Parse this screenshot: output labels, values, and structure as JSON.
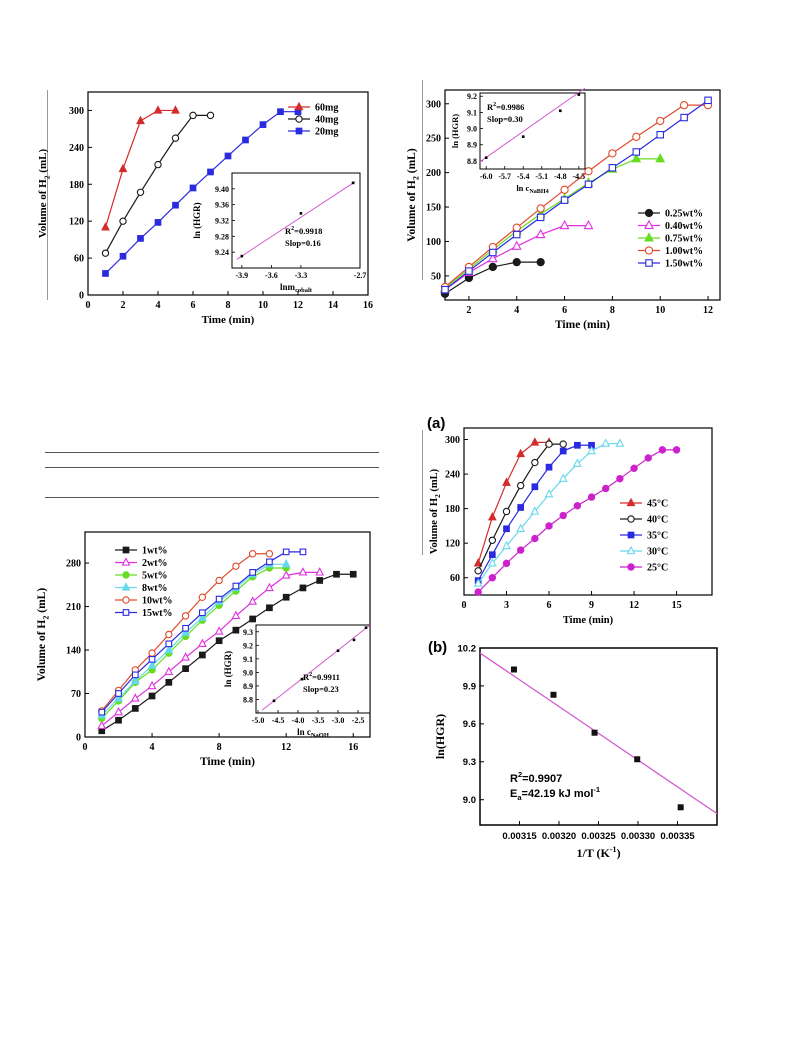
{
  "colors": {
    "red": "#d42b2b",
    "black": "#1a1a1a",
    "blue": "#2a2ae0",
    "magenta": "#e030e0",
    "green": "#66dd22",
    "orange": "#e04a2a",
    "cyan": "#66d8ee",
    "purple": "#cc22cc",
    "fit": "#d25ad2"
  },
  "chart_data": [
    {
      "type": "line",
      "xlabel": "Time (min)",
      "ylabel": "Volume of H2 (mL)",
      "xlim": [
        0,
        16
      ],
      "ylim": [
        0,
        330
      ],
      "x_ticks": [
        "0",
        "2",
        "4",
        "6",
        "8",
        "10",
        "12",
        "14",
        "16"
      ],
      "y_ticks": [
        "0",
        "60",
        "120",
        "180",
        "240",
        "300"
      ],
      "legend_position": "top-right",
      "series": [
        {
          "name": "60mg",
          "color": "#d42b2b",
          "marker": "triangle-filled",
          "x": [
            1,
            2,
            3,
            4,
            5
          ],
          "y": [
            110,
            205,
            283,
            300,
            300
          ]
        },
        {
          "name": "40mg",
          "color": "#1a1a1a",
          "marker": "circle-open",
          "x": [
            1,
            2,
            3,
            4,
            5,
            6,
            7
          ],
          "y": [
            68,
            120,
            167,
            212,
            255,
            292,
            292
          ]
        },
        {
          "name": "20mg",
          "color": "#2a2ae0",
          "marker": "square-filled",
          "x": [
            1,
            2,
            3,
            4,
            5,
            6,
            7,
            8,
            9,
            10,
            11,
            12
          ],
          "y": [
            35,
            63,
            92,
            118,
            146,
            174,
            200,
            226,
            252,
            277,
            298,
            298
          ]
        }
      ],
      "inset": {
        "ylabel": "ln (HGR)",
        "xlabel": "lnm",
        "xlabel_sub": "cobalt",
        "xlim": [
          -4.0,
          -2.7
        ],
        "ylim": [
          9.2,
          9.44
        ],
        "x_ticks": [
          "-3.9",
          "-3.6",
          "-3.3",
          "-2.7"
        ],
        "y_ticks": [
          "9.24",
          "9.28",
          "9.32",
          "9.36",
          "9.40"
        ],
        "points": {
          "x": [
            -3.9,
            -3.3,
            -2.77
          ],
          "y": [
            9.23,
            9.338,
            9.415
          ]
        },
        "fit": {
          "x": [
            -3.95,
            -2.75
          ],
          "y": [
            9.222,
            9.418
          ]
        },
        "r2_label": "R",
        "r2_value": "=0.9918",
        "slope_label": "Slop=0.16"
      }
    },
    {
      "type": "line",
      "xlabel": "Time (min)",
      "ylabel": "Volume of H2 (mL)",
      "xlim": [
        1,
        12.5
      ],
      "ylim": [
        15,
        320
      ],
      "x_ticks": [
        "2",
        "4",
        "6",
        "8",
        "10",
        "12"
      ],
      "y_ticks": [
        "50",
        "100",
        "150",
        "200",
        "250",
        "300"
      ],
      "legend_position": "bottom-right",
      "series": [
        {
          "name": "0.25wt%",
          "color": "#1a1a1a",
          "marker": "circle-filled",
          "x": [
            1,
            2,
            3,
            4,
            5
          ],
          "y": [
            24,
            47,
            63,
            70,
            70
          ]
        },
        {
          "name": "0.40wt%",
          "color": "#e030e0",
          "marker": "triangle-open",
          "x": [
            1,
            2,
            3,
            4,
            5,
            6,
            7
          ],
          "y": [
            30,
            55,
            75,
            93,
            110,
            123,
            123
          ]
        },
        {
          "name": "0.75wt%",
          "color": "#66dd22",
          "marker": "triangle-filled",
          "x": [
            1,
            2,
            3,
            4,
            5,
            6,
            7,
            8,
            9,
            10
          ],
          "y": [
            32,
            60,
            88,
            115,
            140,
            162,
            185,
            205,
            220,
            220
          ]
        },
        {
          "name": "1.00wt%",
          "color": "#e04a2a",
          "marker": "circle-open",
          "x": [
            1,
            2,
            3,
            4,
            5,
            6,
            7,
            8,
            9,
            10,
            11,
            12
          ],
          "y": [
            34,
            63,
            92,
            120,
            148,
            175,
            202,
            228,
            252,
            275,
            298,
            298
          ]
        },
        {
          "name": "1.50wt%",
          "color": "#2a2ae0",
          "marker": "square-open",
          "x": [
            1,
            2,
            3,
            4,
            5,
            6,
            7,
            8,
            9,
            10,
            11,
            12
          ],
          "y": [
            30,
            57,
            84,
            110,
            135,
            160,
            183,
            207,
            230,
            255,
            280,
            305
          ]
        }
      ],
      "inset": {
        "ylabel": "ln (HGR)",
        "xlabel": "ln c",
        "xlabel_sub": "NaBH4",
        "xlim": [
          -6.1,
          -4.4
        ],
        "ylim": [
          8.75,
          9.22
        ],
        "x_ticks": [
          "-6.0",
          "-5.7",
          "-5.4",
          "-5.1",
          "-4.8",
          "-4.5"
        ],
        "y_ticks": [
          "8.8",
          "8.9",
          "9.0",
          "9.1",
          "9.2"
        ],
        "points": {
          "x": [
            -6.0,
            -5.4,
            -4.8,
            -4.5
          ],
          "y": [
            8.82,
            8.95,
            9.11,
            9.21
          ]
        },
        "fit": {
          "x": [
            -6.1,
            -4.4
          ],
          "y": [
            8.795,
            9.25
          ]
        },
        "r2_label": "R",
        "r2_value": "=0.9986",
        "slope_label": "Slop=0.30"
      }
    },
    {
      "type": "line",
      "xlabel": "Time (min)",
      "ylabel": "Volume of H2 (mL)",
      "xlim": [
        0,
        17
      ],
      "ylim": [
        0,
        330
      ],
      "x_ticks": [
        "0",
        "4",
        "8",
        "12",
        "16"
      ],
      "y_ticks": [
        "0",
        "70",
        "140",
        "210",
        "280"
      ],
      "legend_position": "top-left",
      "series": [
        {
          "name": "1wt%",
          "color": "#1a1a1a",
          "marker": "square-filled",
          "x": [
            1,
            2,
            3,
            4,
            5,
            6,
            7,
            8,
            9,
            10,
            11,
            12,
            13,
            14,
            15,
            16
          ],
          "y": [
            10,
            27,
            46,
            66,
            88,
            110,
            132,
            155,
            172,
            190,
            208,
            225,
            240,
            252,
            262,
            262
          ]
        },
        {
          "name": "2wt%",
          "color": "#e030e0",
          "marker": "triangle-open",
          "x": [
            1,
            2,
            3,
            4,
            5,
            6,
            7,
            8,
            9,
            10,
            11,
            12,
            13,
            14
          ],
          "y": [
            18,
            40,
            62,
            82,
            105,
            128,
            150,
            170,
            195,
            218,
            240,
            260,
            265,
            265
          ]
        },
        {
          "name": "5wt%",
          "color": "#66dd22",
          "marker": "circle-filled",
          "x": [
            1,
            2,
            3,
            4,
            5,
            6,
            7,
            8,
            9,
            10,
            11,
            12
          ],
          "y": [
            30,
            58,
            88,
            108,
            135,
            162,
            188,
            212,
            235,
            258,
            272,
            272
          ]
        },
        {
          "name": "8wt%",
          "color": "#66d8ee",
          "marker": "triangle-filled",
          "x": [
            1,
            2,
            3,
            4,
            5,
            6,
            7,
            8,
            9,
            10,
            11,
            12
          ],
          "y": [
            35,
            62,
            90,
            115,
            140,
            168,
            192,
            218,
            240,
            262,
            278,
            278
          ]
        },
        {
          "name": "10wt%",
          "color": "#e04a2a",
          "marker": "circle-open",
          "x": [
            1,
            2,
            3,
            4,
            5,
            6,
            7,
            8,
            9,
            10,
            11
          ],
          "y": [
            42,
            75,
            108,
            135,
            165,
            195,
            225,
            252,
            275,
            295,
            295
          ]
        },
        {
          "name": "15wt%",
          "color": "#2a2ae0",
          "marker": "square-open",
          "x": [
            1,
            2,
            3,
            4,
            5,
            6,
            7,
            8,
            9,
            10,
            11,
            12,
            13
          ],
          "y": [
            40,
            70,
            100,
            125,
            150,
            175,
            200,
            222,
            243,
            265,
            282,
            298,
            298
          ]
        }
      ],
      "inset": {
        "ylabel": "ln (HGR)",
        "xlabel": "ln c",
        "xlabel_sub": "NaOH",
        "xlim": [
          -5.05,
          -2.2
        ],
        "ylim": [
          8.7,
          9.35
        ],
        "x_ticks": [
          "-5.0",
          "-4.5",
          "-4.0",
          "-3.5",
          "-3.0",
          "-2.5"
        ],
        "y_ticks": [
          "8.8",
          "8.9",
          "9.0",
          "9.1",
          "9.2",
          "9.3"
        ],
        "points": {
          "x": [
            -4.6,
            -3.9,
            -3.0,
            -2.6,
            -2.3
          ],
          "y": [
            8.79,
            8.95,
            9.16,
            9.24,
            9.33
          ]
        },
        "fit": {
          "x": [
            -4.9,
            -2.2
          ],
          "y": [
            8.72,
            9.35
          ]
        },
        "r2_label": "R",
        "r2_value": "=0.9911",
        "slope_label": "Slop=0.23"
      }
    },
    {
      "type": "line",
      "panel_label": "(a)",
      "xlabel": "Time (min)",
      "ylabel": "Volume of H2 (mL)",
      "xlim": [
        0,
        17.5
      ],
      "ylim": [
        30,
        320
      ],
      "x_ticks": [
        "0",
        "3",
        "6",
        "9",
        "12",
        "15"
      ],
      "y_ticks": [
        "60",
        "120",
        "180",
        "240",
        "300"
      ],
      "legend_position": "right",
      "series": [
        {
          "name": "45°C",
          "color": "#d42b2b",
          "marker": "triangle-filled",
          "x": [
            1,
            2,
            3,
            4,
            5,
            6
          ],
          "y": [
            85,
            165,
            225,
            275,
            295,
            295
          ]
        },
        {
          "name": "40°C",
          "color": "#1a1a1a",
          "marker": "circle-open",
          "x": [
            1,
            2,
            3,
            4,
            5,
            6,
            7
          ],
          "y": [
            72,
            125,
            175,
            220,
            260,
            292,
            292
          ]
        },
        {
          "name": "35°C",
          "color": "#2a2ae0",
          "marker": "square-filled",
          "x": [
            1,
            2,
            3,
            4,
            5,
            6,
            7,
            8,
            9
          ],
          "y": [
            55,
            100,
            145,
            182,
            218,
            252,
            280,
            290,
            290
          ]
        },
        {
          "name": "30°C",
          "color": "#66d8ee",
          "marker": "triangle-open",
          "x": [
            1,
            2,
            3,
            4,
            5,
            6,
            7,
            8,
            9,
            10,
            11
          ],
          "y": [
            50,
            85,
            115,
            145,
            175,
            205,
            232,
            258,
            280,
            293,
            293
          ]
        },
        {
          "name": "25°C",
          "color": "#cc22cc",
          "marker": "circle-filled",
          "x": [
            1,
            2,
            3,
            4,
            5,
            6,
            7,
            8,
            9,
            10,
            11,
            12,
            13,
            14,
            15
          ],
          "y": [
            35,
            60,
            85,
            108,
            128,
            150,
            168,
            185,
            200,
            215,
            232,
            250,
            268,
            282,
            282
          ]
        }
      ]
    },
    {
      "type": "scatter",
      "panel_label": "(b)",
      "xlabel": "1/T (K",
      "xlabel_sup": "-1",
      "ylabel": "ln(HGR)",
      "xlim": [
        0.0031,
        0.0034
      ],
      "ylim": [
        8.8,
        10.2
      ],
      "x_ticks": [
        "0.00315",
        "0.00320",
        "0.00325",
        "0.00330",
        "0.00335"
      ],
      "y_ticks": [
        "9.0",
        "9.3",
        "9.6",
        "9.9",
        "10.2"
      ],
      "points": {
        "x": [
          0.003143,
          0.003193,
          0.003245,
          0.003299,
          0.003354
        ],
        "y": [
          10.03,
          9.83,
          9.53,
          9.32,
          8.94
        ]
      },
      "fit": {
        "x": [
          0.0031,
          0.0034
        ],
        "y": [
          10.16,
          8.89
        ]
      },
      "r2_label": "R",
      "r2_value": "=0.9907",
      "ea_label": "E",
      "ea_sub": "a",
      "ea_value": "=42.19 kJ mol",
      "ea_sup": "-1"
    }
  ]
}
